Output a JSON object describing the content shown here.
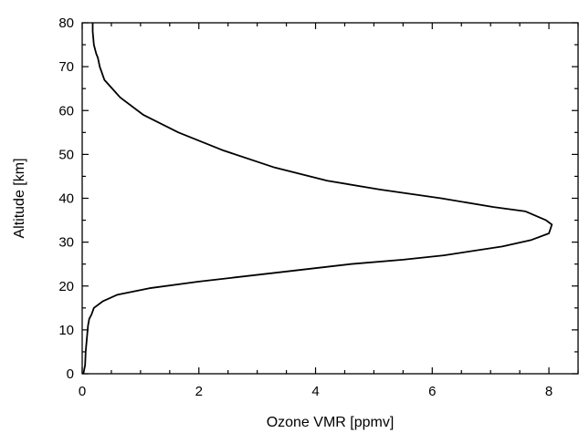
{
  "chart_data": {
    "type": "line",
    "title": "",
    "xlabel": "Ozone VMR [ppmv]",
    "ylabel": "Altitude [km]",
    "xlim": [
      0,
      8.5
    ],
    "ylim": [
      0,
      80
    ],
    "xticks": [
      0,
      2,
      4,
      6,
      8
    ],
    "yticks": [
      0,
      10,
      20,
      30,
      40,
      50,
      60,
      70,
      80
    ],
    "xtick_labels": [
      "0",
      "2",
      "4",
      "6",
      "8"
    ],
    "ytick_labels": [
      "0",
      "10",
      "20",
      "30",
      "40",
      "50",
      "60",
      "70",
      "80"
    ],
    "grid": false,
    "line_color": "#000000",
    "series": [
      {
        "x": [
          0.02,
          0.05,
          0.06,
          0.08,
          0.1,
          0.12,
          0.16,
          0.2,
          0.35,
          0.6,
          1.15,
          2.0,
          3.3,
          4.6,
          5.5,
          6.2,
          7.2,
          7.7,
          8.0,
          8.05,
          7.95,
          7.6,
          7.05,
          6.15,
          5.1,
          4.2,
          3.3,
          2.4,
          1.65,
          1.05,
          0.65,
          0.38,
          0.3,
          0.27,
          0.24,
          0.2,
          0.18,
          0.18
        ],
        "y": [
          0,
          2,
          5,
          8,
          11,
          12.5,
          13.5,
          15,
          16.5,
          18,
          19.5,
          21,
          23,
          25,
          26,
          27,
          29,
          30.5,
          32,
          34,
          35,
          37,
          38,
          40,
          42,
          44,
          47,
          51,
          55,
          59,
          63,
          67,
          70,
          72,
          73,
          75,
          78,
          80
        ]
      }
    ]
  }
}
